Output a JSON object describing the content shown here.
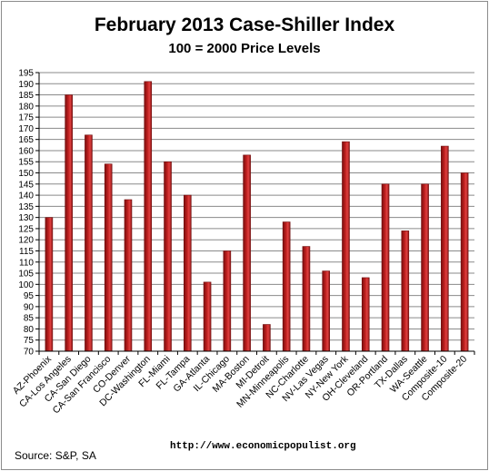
{
  "chart_data": {
    "type": "bar",
    "title": "February 2013 Case-Shiller Index",
    "subtitle": "100 = 2000 Price Levels",
    "xlabel": "",
    "ylabel": "",
    "ylim": [
      70,
      195
    ],
    "ytick_step": 5,
    "grid": true,
    "legend": "none",
    "bar_color": "#c0201f",
    "categories": [
      "AZ-Phoenix",
      "CA-Los Angeles",
      "CA-San Diego",
      "CA-San Francisco",
      "CO-Denver",
      "DC-Washington",
      "FL-Miami",
      "FL-Tampa",
      "GA-Atlanta",
      "IL-Chicago",
      "MA-Boston",
      "MI-Detroit",
      "MN-Minneapolis",
      "NC-Charlotte",
      "NV-Las Vegas",
      "NY-New York",
      "OH-Cleveland",
      "OR-Portland",
      "TX-Dallas",
      "WA-Seattle",
      "Composite-10",
      "Composite-20"
    ],
    "values": [
      130,
      185,
      167,
      154,
      138,
      191,
      155,
      140,
      101,
      115,
      158,
      82,
      128,
      117,
      106,
      164,
      103,
      145,
      124,
      145,
      162,
      150
    ]
  },
  "footer": {
    "source": "Source:  S&P, SA",
    "url": "http://www.economicpopulist.org"
  }
}
